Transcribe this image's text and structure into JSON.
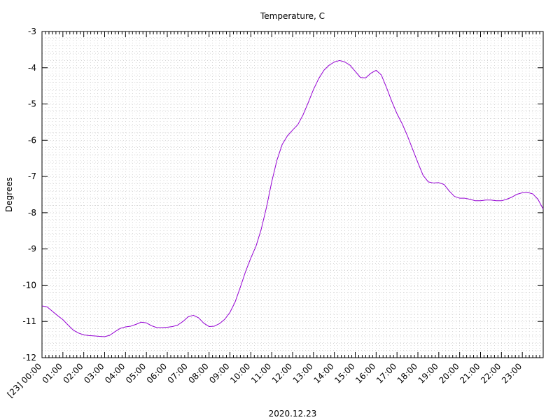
{
  "chart_data": {
    "type": "line",
    "title": "Temperature, C",
    "xlabel": "2020.12.23",
    "ylabel": "Degrees",
    "ylim": [
      -12,
      -3
    ],
    "xlim": [
      "00:00",
      "24:00"
    ],
    "grid": true,
    "y_ticks": [
      "-3",
      "-4",
      "-5",
      "-6",
      "-7",
      "-8",
      "-9",
      "-10",
      "-11",
      "-12"
    ],
    "x_ticks": [
      "[23] 00:00",
      "01:00",
      "02:00",
      "03:00",
      "04:00",
      "05:00",
      "06:00",
      "07:00",
      "08:00",
      "09:00",
      "10:00",
      "11:00",
      "12:00",
      "13:00",
      "14:00",
      "15:00",
      "16:00",
      "17:00",
      "18:00",
      "19:00",
      "20:00",
      "21:00",
      "22:00",
      "23:00"
    ],
    "series": [
      {
        "color": "#9400d3",
        "x": [
          "00:00",
          "00:15",
          "00:30",
          "00:45",
          "01:00",
          "01:15",
          "01:30",
          "01:45",
          "02:00",
          "02:15",
          "02:30",
          "02:45",
          "03:00",
          "03:15",
          "03:30",
          "03:45",
          "04:00",
          "04:15",
          "04:30",
          "04:45",
          "05:00",
          "05:15",
          "05:30",
          "05:45",
          "06:00",
          "06:15",
          "06:30",
          "06:45",
          "07:00",
          "07:15",
          "07:30",
          "07:45",
          "08:00",
          "08:15",
          "08:30",
          "08:45",
          "09:00",
          "09:15",
          "09:30",
          "09:45",
          "10:00",
          "10:15",
          "10:30",
          "10:45",
          "11:00",
          "11:15",
          "11:30",
          "11:45",
          "12:00",
          "12:15",
          "12:30",
          "12:45",
          "13:00",
          "13:15",
          "13:30",
          "13:45",
          "14:00",
          "14:15",
          "14:30",
          "14:45",
          "15:00",
          "15:15",
          "15:30",
          "15:45",
          "16:00",
          "16:15",
          "16:30",
          "16:45",
          "17:00",
          "17:15",
          "17:30",
          "17:45",
          "18:00",
          "18:15",
          "18:30",
          "18:45",
          "19:00",
          "19:15",
          "19:30",
          "19:45",
          "20:00",
          "20:15",
          "20:30",
          "20:45",
          "21:00",
          "21:15",
          "21:30",
          "21:45",
          "22:00",
          "22:15",
          "22:30",
          "22:45",
          "23:00",
          "23:15",
          "23:30",
          "23:45",
          "24:00"
        ],
        "values": [
          -10.57,
          -10.6,
          -10.72,
          -10.84,
          -10.95,
          -11.1,
          -11.24,
          -11.32,
          -11.37,
          -11.39,
          -11.4,
          -11.41,
          -11.42,
          -11.38,
          -11.28,
          -11.19,
          -11.15,
          -11.13,
          -11.08,
          -11.02,
          -11.04,
          -11.12,
          -11.17,
          -11.17,
          -11.16,
          -11.14,
          -11.1,
          -11.0,
          -10.87,
          -10.83,
          -10.9,
          -11.05,
          -11.14,
          -11.13,
          -11.06,
          -10.94,
          -10.75,
          -10.46,
          -10.05,
          -9.62,
          -9.25,
          -8.92,
          -8.45,
          -7.85,
          -7.15,
          -6.55,
          -6.12,
          -5.88,
          -5.72,
          -5.57,
          -5.3,
          -4.96,
          -4.6,
          -4.3,
          -4.07,
          -3.93,
          -3.84,
          -3.8,
          -3.84,
          -3.93,
          -4.1,
          -4.27,
          -4.28,
          -4.15,
          -4.07,
          -4.2,
          -4.55,
          -4.93,
          -5.27,
          -5.55,
          -5.88,
          -6.25,
          -6.62,
          -6.97,
          -7.15,
          -7.18,
          -7.17,
          -7.22,
          -7.4,
          -7.55,
          -7.6,
          -7.6,
          -7.63,
          -7.67,
          -7.67,
          -7.65,
          -7.65,
          -7.67,
          -7.67,
          -7.63,
          -7.57,
          -7.49,
          -7.45,
          -7.44,
          -7.48,
          -7.63,
          -7.9
        ]
      }
    ]
  }
}
